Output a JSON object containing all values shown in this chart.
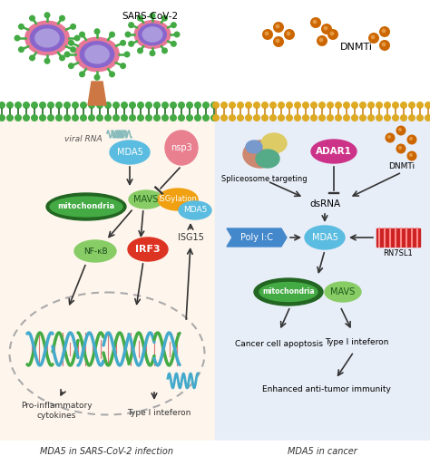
{
  "title_left": "MDA5 in SARS-CoV-2 infection",
  "title_right": "MDA5 in cancer",
  "bg_left": "#fef5ec",
  "bg_right": "#e8eef8",
  "sars_label": "SARS-CoV-2",
  "dnmti_label": "DNMTi",
  "labels": {
    "viral_rna": "viral RNA",
    "MDA5_left": "MDA5",
    "MAVS_left": "MAVS",
    "mitochondria_left": "mitochondria",
    "NFkB": "NF-κB",
    "IRF3": "IRF3",
    "ISGylation": "ISGylation",
    "MDA5_isg": "MDA5",
    "ISG15": "ISG15",
    "nsp3": "nsp3",
    "pro_inflam": "Pro-inflammatory\ncytokines",
    "type1_ifn_left": "Type I inteferon",
    "spliceosome": "Spliceosome targeting",
    "ADAR1": "ADAR1",
    "dsRNA": "dsRNA",
    "PolyIC": "Poly I:C",
    "MDA5_right": "MDA5",
    "RN7SL1": "RN7SL1",
    "mitochondria_right": "mitochondria",
    "MAVS_right": "MAVS",
    "cancer_apoptosis": "Cancer cell apoptosis",
    "type1_ifn_right": "Type I inteferon",
    "enhanced": "Enhanced anti-tumor immunity",
    "dnmti_right": "DNMTi"
  },
  "colors": {
    "MDA5": "#5abce0",
    "MAVS": "#88cc66",
    "mitochondria_outer": "#226622",
    "mitochondria_inner": "#44aa44",
    "NFkB": "#88cc66",
    "IRF3": "#dd3322",
    "ISGylation": "#f0a010",
    "nsp3": "#e88090",
    "ADAR1": "#cc3388",
    "PolyIC": "#4488cc",
    "dnmti_dot": "#cc6600",
    "membrane_left_head": "#44aa44",
    "membrane_left_tail": "#226622",
    "membrane_right_head": "#ddaa22",
    "membrane_right_tail": "#cc8822",
    "virus_outer": "#e87898",
    "virus_ring": "#8866cc",
    "virus_spike": "#44aa44",
    "receptor": "#cc7744",
    "arrow": "#333333",
    "rna_squiggle": "#88bbbb",
    "rn7sl1_bar": "#cc2222",
    "rn7sl1_stripe": "#ff8888",
    "nucleus_edge": "#aaaaaa",
    "dna_green": "#44aa44",
    "dna_cyan": "#44aacc",
    "dna_red": "#dd4444"
  }
}
